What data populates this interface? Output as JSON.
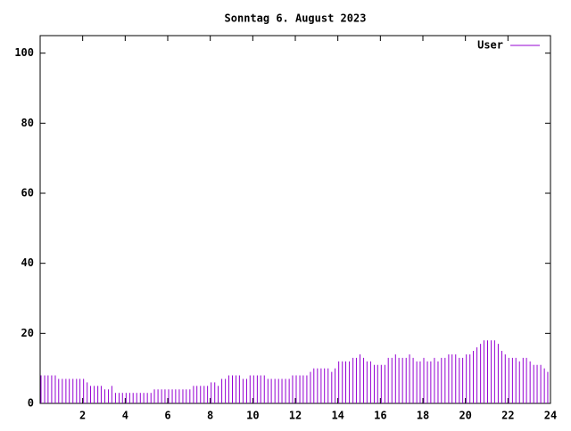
{
  "chart_data": {
    "type": "impulses",
    "title": "Sonntag 6. August 2023",
    "series": [
      {
        "name": "User",
        "color": "#9400d3",
        "x": [
          0,
          0.17,
          0.33,
          0.5,
          0.67,
          0.83,
          1,
          1.17,
          1.33,
          1.5,
          1.67,
          1.83,
          2,
          2.17,
          2.33,
          2.5,
          2.67,
          2.83,
          3,
          3.17,
          3.33,
          3.5,
          3.67,
          3.83,
          4,
          4.17,
          4.33,
          4.5,
          4.67,
          4.83,
          5,
          5.17,
          5.33,
          5.5,
          5.67,
          5.83,
          6,
          6.17,
          6.33,
          6.5,
          6.67,
          6.83,
          7,
          7.17,
          7.33,
          7.5,
          7.67,
          7.83,
          8,
          8.17,
          8.33,
          8.5,
          8.67,
          8.83,
          9,
          9.17,
          9.33,
          9.5,
          9.67,
          9.83,
          10,
          10.17,
          10.33,
          10.5,
          10.67,
          10.83,
          11,
          11.17,
          11.33,
          11.5,
          11.67,
          11.83,
          12,
          12.17,
          12.33,
          12.5,
          12.67,
          12.83,
          13,
          13.17,
          13.33,
          13.5,
          13.67,
          13.83,
          14,
          14.17,
          14.33,
          14.5,
          14.67,
          14.83,
          15,
          15.17,
          15.33,
          15.5,
          15.67,
          15.83,
          16,
          16.17,
          16.33,
          16.5,
          16.67,
          16.83,
          17,
          17.17,
          17.33,
          17.5,
          17.67,
          17.83,
          18,
          18.17,
          18.33,
          18.5,
          18.67,
          18.83,
          19,
          19.17,
          19.33,
          19.5,
          19.67,
          19.83,
          20,
          20.17,
          20.33,
          20.5,
          20.67,
          20.83,
          21,
          21.17,
          21.33,
          21.5,
          21.67,
          21.83,
          22,
          22.17,
          22.33,
          22.5,
          22.67,
          22.83,
          23,
          23.17,
          23.33,
          23.5,
          23.67,
          23.83
        ],
        "values": [
          8,
          8,
          8,
          8,
          8,
          7,
          7,
          7,
          7,
          7,
          7,
          7,
          7,
          6,
          5,
          5,
          5,
          5,
          4,
          4,
          5,
          3,
          3,
          3,
          3,
          3,
          3,
          3,
          3,
          3,
          3,
          3,
          4,
          4,
          4,
          4,
          4,
          4,
          4,
          4,
          4,
          4,
          4,
          5,
          5,
          5,
          5,
          5,
          6,
          6,
          5,
          7,
          7,
          8,
          8,
          8,
          8,
          7,
          7,
          8,
          8,
          8,
          8,
          8,
          7,
          7,
          7,
          7,
          7,
          7,
          7,
          8,
          8,
          8,
          8,
          8,
          9,
          10,
          10,
          10,
          10,
          10,
          9,
          10,
          12,
          12,
          12,
          12,
          13,
          13,
          14,
          13,
          12,
          12,
          11,
          11,
          11,
          11,
          13,
          13,
          14,
          13,
          13,
          13,
          14,
          13,
          12,
          12,
          13,
          12,
          12,
          13,
          12,
          13,
          13,
          14,
          14,
          14,
          13,
          13,
          14,
          14,
          15,
          16,
          17,
          18,
          18,
          18,
          18,
          17,
          15,
          14,
          13,
          13,
          13,
          12,
          13,
          13,
          12,
          11,
          11,
          11,
          10,
          9
        ]
      }
    ],
    "xlim": [
      0,
      24
    ],
    "xticks": [
      2,
      4,
      6,
      8,
      10,
      12,
      14,
      16,
      18,
      20,
      22,
      24
    ],
    "ylim": [
      0,
      105
    ],
    "yticks": [
      0,
      20,
      40,
      60,
      80,
      100
    ],
    "legend": "top-right"
  }
}
